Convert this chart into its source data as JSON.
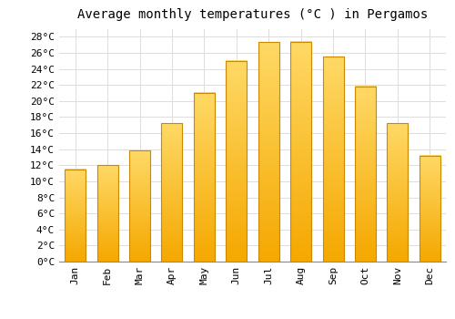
{
  "title": "Average monthly temperatures (°C ) in Pergamos",
  "months": [
    "Jan",
    "Feb",
    "Mar",
    "Apr",
    "May",
    "Jun",
    "Jul",
    "Aug",
    "Sep",
    "Oct",
    "Nov",
    "Dec"
  ],
  "values": [
    11.5,
    12.0,
    13.8,
    17.2,
    21.0,
    25.0,
    27.3,
    27.4,
    25.5,
    21.8,
    17.2,
    13.2
  ],
  "bar_color_bottom": "#F5A800",
  "bar_color_top": "#FFD966",
  "bar_edge_color": "#CC8800",
  "background_color": "#FFFFFF",
  "grid_color": "#DDDDDD",
  "ylim": [
    0,
    29
  ],
  "yticks": [
    0,
    2,
    4,
    6,
    8,
    10,
    12,
    14,
    16,
    18,
    20,
    22,
    24,
    26,
    28
  ],
  "title_fontsize": 10,
  "tick_fontsize": 8,
  "font_family": "monospace",
  "bar_width": 0.65
}
